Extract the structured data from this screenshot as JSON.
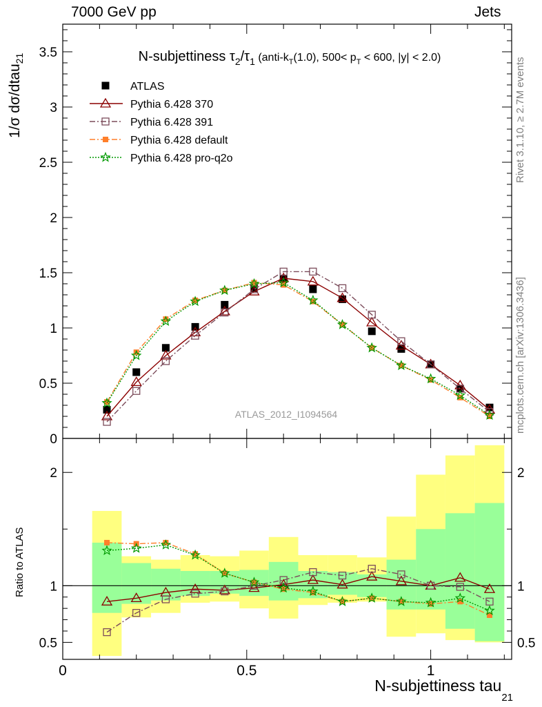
{
  "header": {
    "left": "7000 GeV pp",
    "right": "Jets"
  },
  "side_labels": {
    "rivet": "Rivet 3.1.10, ≥ 2.7M events",
    "mcplots": "mcplots.cern.ch [arXiv:1306.3436]"
  },
  "chart_data": [
    {
      "type": "scatter",
      "title": "N-subjettiness τ2/τ1 (anti-kT(1.0), 500< pT < 600, |y| < 2.0)",
      "ylabel": "1/σ dσ/dtau21",
      "xlabel": "N-subjettiness tau21",
      "analysis_label": "ATLAS_2012_I1094564",
      "xlim": [
        0,
        1.22
      ],
      "ylim": [
        0,
        3.75
      ],
      "yticks": [
        0,
        0.5,
        1,
        1.5,
        2,
        2.5,
        3,
        3.5
      ],
      "ytick_labels": [
        "0",
        "0.5",
        "1",
        "1.5",
        "2",
        "2.5",
        "3",
        "3.5"
      ],
      "xticks": [
        0,
        0.5,
        1
      ],
      "xtick_labels": [
        "0",
        "0.5",
        "1"
      ],
      "x": [
        0.12,
        0.2,
        0.28,
        0.36,
        0.44,
        0.52,
        0.6,
        0.68,
        0.76,
        0.84,
        0.92,
        1.0,
        1.08,
        1.16
      ],
      "legend_position": "top-left",
      "series": [
        {
          "name": "ATLAS",
          "color": "#000000",
          "marker": "filled-square",
          "line": "none",
          "values": [
            0.26,
            0.6,
            0.82,
            1.01,
            1.21,
            1.36,
            1.44,
            1.35,
            1.26,
            0.97,
            0.81,
            0.67,
            0.45,
            0.28
          ]
        },
        {
          "name": "Pythia 6.428 370",
          "color": "#8b0000",
          "marker": "open-triangle",
          "line": "solid",
          "values": [
            0.2,
            0.51,
            0.75,
            0.96,
            1.15,
            1.33,
            1.45,
            1.42,
            1.27,
            1.05,
            0.84,
            0.67,
            0.48,
            0.26
          ]
        },
        {
          "name": "Pythia 6.428 391",
          "color": "#7b4b5a",
          "marker": "open-square",
          "line": "dashdot",
          "values": [
            0.15,
            0.43,
            0.7,
            0.93,
            1.14,
            1.35,
            1.51,
            1.51,
            1.36,
            1.12,
            0.88,
            0.67,
            0.45,
            0.24
          ]
        },
        {
          "name": "Pythia 6.428 default",
          "color": "#ff7f2a",
          "marker": "filled-square-small",
          "line": "dashdot",
          "values": [
            0.33,
            0.78,
            1.08,
            1.25,
            1.34,
            1.41,
            1.39,
            1.24,
            1.03,
            0.82,
            0.66,
            0.53,
            0.37,
            0.2
          ]
        },
        {
          "name": "Pythia 6.428 pro-q2o",
          "color": "#009900",
          "marker": "open-star",
          "line": "dotted",
          "values": [
            0.32,
            0.75,
            1.06,
            1.24,
            1.34,
            1.4,
            1.41,
            1.25,
            1.03,
            0.82,
            0.66,
            0.54,
            0.39,
            0.21
          ]
        }
      ]
    },
    {
      "type": "line",
      "ylabel": "Ratio to ATLAS",
      "xlim": [
        0,
        1.22
      ],
      "ylim": [
        0.35,
        2.3
      ],
      "yticks": [
        0.5,
        1,
        2
      ],
      "ytick_labels": [
        "0.5",
        "1",
        "2"
      ],
      "bin_edges": [
        0.08,
        0.16,
        0.24,
        0.32,
        0.4,
        0.48,
        0.56,
        0.64,
        0.72,
        0.8,
        0.88,
        0.96,
        1.04,
        1.12,
        1.2
      ],
      "band_inner": {
        "color": "#99ff99",
        "low": [
          0.76,
          0.84,
          0.87,
          0.91,
          0.93,
          0.91,
          0.87,
          0.89,
          0.92,
          0.9,
          0.79,
          0.79,
          0.62,
          0.51
        ],
        "high": [
          1.38,
          1.2,
          1.15,
          1.13,
          1.13,
          1.14,
          1.21,
          1.13,
          1.12,
          1.1,
          1.23,
          1.5,
          1.64,
          1.73
        ]
      },
      "band_outer": {
        "color": "#ffff80",
        "low": [
          0.38,
          0.72,
          0.76,
          0.85,
          0.86,
          0.8,
          0.71,
          0.83,
          0.85,
          0.86,
          0.55,
          0.58,
          0.52,
          0.5
        ],
        "high": [
          1.66,
          1.26,
          1.23,
          1.27,
          1.26,
          1.31,
          1.43,
          1.27,
          1.27,
          1.25,
          1.61,
          1.98,
          2.15,
          2.24
        ]
      },
      "reference": 1,
      "series": [
        {
          "name": "Pythia 6.428 370",
          "color": "#8b0000",
          "marker": "open-triangle",
          "line": "solid",
          "values": [
            0.86,
            0.89,
            0.94,
            0.97,
            0.96,
            0.98,
            1.01,
            1.05,
            1.01,
            1.08,
            1.04,
            1.0,
            1.07,
            0.97
          ]
        },
        {
          "name": "Pythia 6.428 391",
          "color": "#7b4b5a",
          "marker": "open-square",
          "line": "dashdot",
          "values": [
            0.59,
            0.76,
            0.88,
            0.93,
            0.95,
            1.0,
            1.05,
            1.12,
            1.09,
            1.15,
            1.1,
            1.0,
            0.99,
            0.86
          ]
        },
        {
          "name": "Pythia 6.428 default",
          "color": "#ff7f2a",
          "marker": "filled-square-small",
          "line": "dashdot",
          "values": [
            1.38,
            1.37,
            1.38,
            1.28,
            1.11,
            1.03,
            0.97,
            0.94,
            0.86,
            0.89,
            0.86,
            0.84,
            0.86,
            0.74
          ]
        },
        {
          "name": "Pythia 6.428 pro-q2o",
          "color": "#009900",
          "marker": "open-star",
          "line": "dotted",
          "values": [
            1.31,
            1.33,
            1.36,
            1.27,
            1.11,
            1.03,
            0.98,
            0.95,
            0.86,
            0.89,
            0.86,
            0.85,
            0.89,
            0.78
          ]
        }
      ]
    }
  ]
}
